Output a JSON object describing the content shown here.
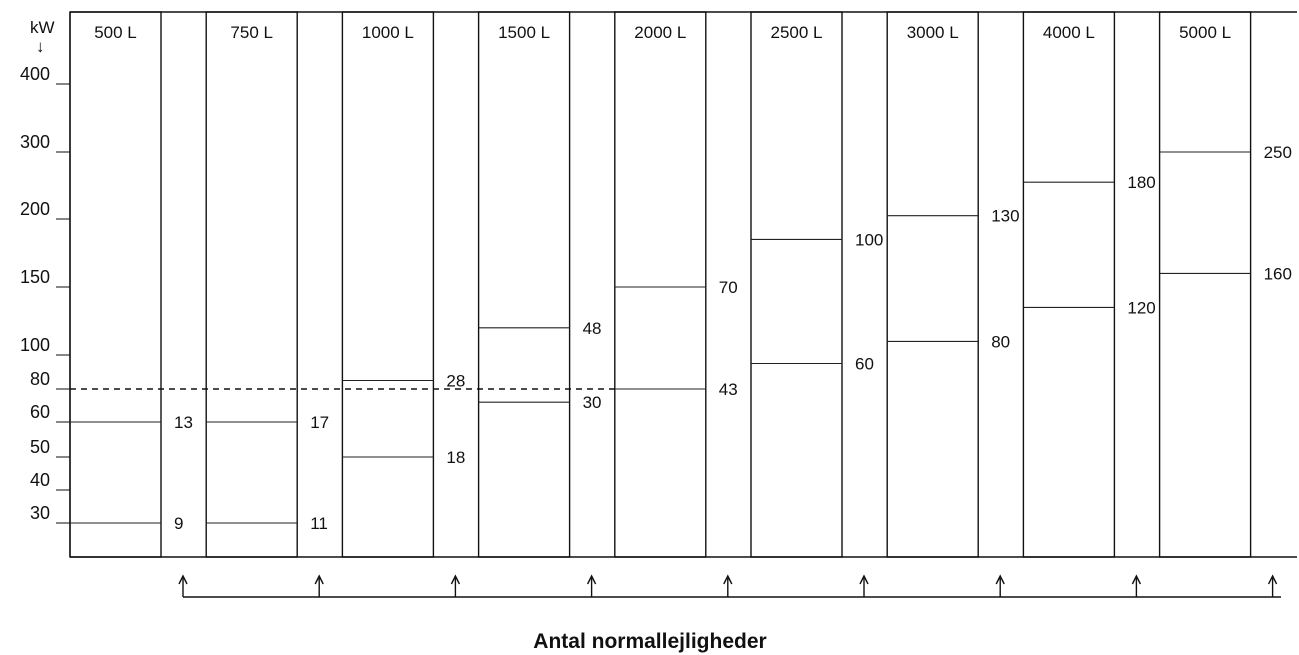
{
  "y_unit": "kW",
  "y_ticks": [
    {
      "label": "400",
      "value": 400
    },
    {
      "label": "300",
      "value": 300
    },
    {
      "label": "200",
      "value": 200
    },
    {
      "label": "150",
      "value": 150
    },
    {
      "label": "100",
      "value": 100
    },
    {
      "label": "80",
      "value": 80
    },
    {
      "label": "60",
      "value": 60
    },
    {
      "label": "50",
      "value": 50
    },
    {
      "label": "40",
      "value": 40
    },
    {
      "label": "30",
      "value": 30
    }
  ],
  "reference_level_kw": 80,
  "tanks": [
    {
      "volume": "500 L",
      "low_kw": 60,
      "low_count": "13",
      "high_kw": 30,
      "high_count": "9"
    },
    {
      "volume": "750 L",
      "low_kw": 60,
      "low_count": "17",
      "high_kw": 30,
      "high_count": "11"
    },
    {
      "volume": "1000 L",
      "low_kw": 85,
      "low_count": "28",
      "high_kw": 50,
      "high_count": "18"
    },
    {
      "volume": "1500 L",
      "low_kw": 120,
      "low_count": "48",
      "high_kw": 72,
      "high_count": "30"
    },
    {
      "volume": "2000 L",
      "low_kw": 150,
      "low_count": "70",
      "high_kw": 80,
      "high_count": "43"
    },
    {
      "volume": "2500 L",
      "low_kw": 185,
      "low_count": "100",
      "high_kw": 95,
      "high_count": "60"
    },
    {
      "volume": "3000 L",
      "low_kw": 205,
      "low_count": "130",
      "high_kw": 110,
      "high_count": "80"
    },
    {
      "volume": "4000 L",
      "low_kw": 255,
      "low_count": "180",
      "high_kw": 135,
      "high_count": "120"
    },
    {
      "volume": "5000 L",
      "low_kw": 300,
      "low_count": "250",
      "high_kw": 160,
      "high_count": "160"
    }
  ],
  "caption": "Antal normallejligheder"
}
